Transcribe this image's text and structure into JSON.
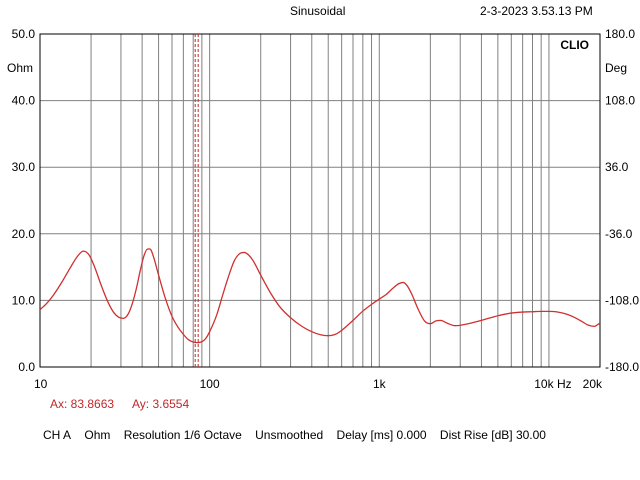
{
  "header": {
    "title": "Sinusoidal",
    "timestamp": "2-3-2023 3.53.13 PM"
  },
  "plot": {
    "brand": "CLIO",
    "left_unit": "Ohm",
    "right_unit": "Deg",
    "x_unit": "Hz",
    "trace_color": "#d03030",
    "cursor_color": "#c0282a",
    "grid_color": "#808080"
  },
  "cursor": {
    "ax_text": "Ax: 83.8663",
    "ay_text": "Ay: 3.6554"
  },
  "status_bar": {
    "channel": "CH A",
    "unit": "Ohm",
    "resolution": "Resolution 1/6 Octave",
    "smoothing": "Unsmoothed",
    "delay": "Delay [ms] 0.000",
    "dist_rise": "Dist Rise [dB] 30.00"
  },
  "chart_data": {
    "type": "line",
    "title": "Sinusoidal",
    "x_scale": "log",
    "xlim": [
      10,
      20000
    ],
    "ylim": [
      0,
      50
    ],
    "y2lim": [
      -180,
      180
    ],
    "ylabel": "Ohm",
    "y2label": "Deg",
    "xlabel": "Hz",
    "grid": true,
    "x_ticks": [
      {
        "value": 10,
        "label": "10"
      },
      {
        "value": 100,
        "label": "100"
      },
      {
        "value": 1000,
        "label": "1k"
      },
      {
        "value": 10000,
        "label": "10k"
      },
      {
        "value": 20000,
        "label": "20k"
      }
    ],
    "y_ticks": [
      "0.0",
      "10.0",
      "20.0",
      "30.0",
      "40.0",
      "50.0"
    ],
    "y2_ticks": [
      "-180.0",
      "-108.0",
      "-36.0",
      "36.0",
      "108.0",
      "180.0"
    ],
    "cursor_x": 83.8663,
    "series": [
      {
        "color": "#d03030",
        "points": [
          [
            10,
            8.6
          ],
          [
            11,
            9.6
          ],
          [
            12,
            10.8
          ],
          [
            13.5,
            12.8
          ],
          [
            15,
            14.8
          ],
          [
            16.5,
            16.5
          ],
          [
            18,
            17.4
          ],
          [
            19.5,
            16.8
          ],
          [
            21,
            15.0
          ],
          [
            23,
            12.2
          ],
          [
            25,
            9.9
          ],
          [
            27,
            8.3
          ],
          [
            29,
            7.5
          ],
          [
            31,
            7.3
          ],
          [
            33,
            7.9
          ],
          [
            35,
            9.5
          ],
          [
            37,
            11.8
          ],
          [
            39,
            14.5
          ],
          [
            41,
            16.7
          ],
          [
            43,
            17.7
          ],
          [
            45,
            17.6
          ],
          [
            47,
            16.3
          ],
          [
            50,
            13.8
          ],
          [
            55,
            10.2
          ],
          [
            60,
            7.6
          ],
          [
            65,
            6.0
          ],
          [
            70,
            4.9
          ],
          [
            75,
            4.1
          ],
          [
            80,
            3.75
          ],
          [
            84,
            3.66
          ],
          [
            90,
            3.8
          ],
          [
            95,
            4.3
          ],
          [
            100,
            5.3
          ],
          [
            110,
            7.8
          ],
          [
            120,
            11.0
          ],
          [
            130,
            13.8
          ],
          [
            140,
            16.0
          ],
          [
            150,
            17.0
          ],
          [
            160,
            17.2
          ],
          [
            170,
            16.8
          ],
          [
            180,
            16.0
          ],
          [
            200,
            13.8
          ],
          [
            230,
            11.0
          ],
          [
            260,
            9.0
          ],
          [
            300,
            7.4
          ],
          [
            350,
            6.1
          ],
          [
            400,
            5.3
          ],
          [
            450,
            4.85
          ],
          [
            500,
            4.7
          ],
          [
            550,
            4.9
          ],
          [
            600,
            5.5
          ],
          [
            700,
            7.0
          ],
          [
            800,
            8.4
          ],
          [
            900,
            9.4
          ],
          [
            1000,
            10.2
          ],
          [
            1100,
            10.9
          ],
          [
            1200,
            11.8
          ],
          [
            1300,
            12.5
          ],
          [
            1380,
            12.7
          ],
          [
            1450,
            12.3
          ],
          [
            1550,
            11.0
          ],
          [
            1700,
            8.6
          ],
          [
            1850,
            6.9
          ],
          [
            2000,
            6.5
          ],
          [
            2150,
            6.9
          ],
          [
            2300,
            7.0
          ],
          [
            2500,
            6.6
          ],
          [
            2800,
            6.2
          ],
          [
            3200,
            6.4
          ],
          [
            4000,
            7.0
          ],
          [
            5000,
            7.7
          ],
          [
            6000,
            8.1
          ],
          [
            7000,
            8.25
          ],
          [
            8000,
            8.3
          ],
          [
            9000,
            8.35
          ],
          [
            10000,
            8.35
          ],
          [
            11000,
            8.3
          ],
          [
            12500,
            8.0
          ],
          [
            14000,
            7.5
          ],
          [
            15500,
            6.9
          ],
          [
            17000,
            6.3
          ],
          [
            18500,
            6.1
          ],
          [
            20000,
            6.6
          ]
        ]
      }
    ]
  }
}
